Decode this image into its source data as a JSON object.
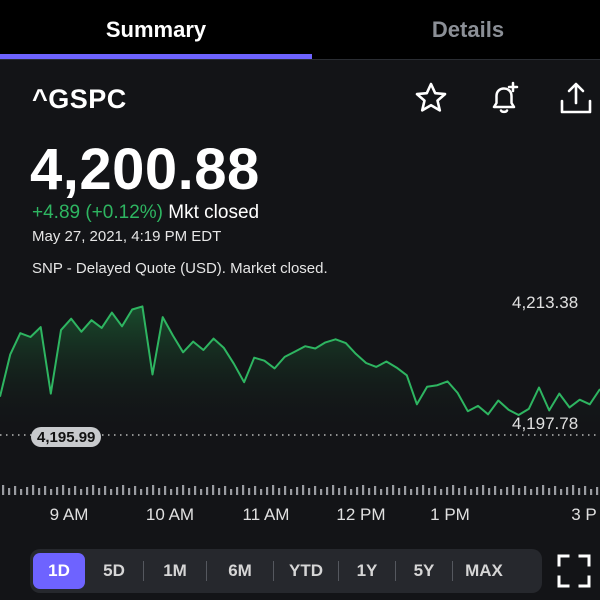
{
  "tabs": [
    {
      "label": "Summary",
      "active": true
    },
    {
      "label": "Details",
      "active": false
    }
  ],
  "quote": {
    "symbol": "^GSPC",
    "price": "4,200.88",
    "change": "+4.89 (+0.12%)",
    "market_status": "Mkt closed",
    "timestamp": "May 27, 2021, 4:19 PM EDT",
    "note": "SNP - Delayed Quote (USD). Market closed."
  },
  "icons": {
    "watchlist": "star-icon",
    "alert": "bell-plus-icon",
    "share": "share-icon",
    "fullscreen": "expand-icon"
  },
  "colors": {
    "accent": "#6e63ff",
    "positive": "#2eb561",
    "background": "#131417"
  },
  "chart_data": {
    "type": "area",
    "high_label": "4,213.38",
    "low_label": "4,197.78",
    "previous_close_label": "4,195.99",
    "x_ticks": [
      "9 AM",
      "10 AM",
      "11 AM",
      "12 PM",
      "1 PM",
      "3 P"
    ],
    "ylim": [
      4195.99,
      4213.38
    ],
    "grid": false,
    "series": [
      {
        "values": [
          4201.0,
          4206.5,
          4209.3,
          4208.8,
          4210.1,
          4201.4,
          4209.7,
          4211.2,
          4209.5,
          4211.0,
          4210.0,
          4212.0,
          4210.2,
          4212.4,
          4212.8,
          4203.9,
          4211.4,
          4209.0,
          4206.8,
          4208.2,
          4207.1,
          4208.6,
          4207.4,
          4205.3,
          4202.9,
          4206.1,
          4205.7,
          4204.7,
          4206.2,
          4206.9,
          4207.6,
          4207.3,
          4208.1,
          4208.5,
          4208.0,
          4206.6,
          4205.4,
          4204.9,
          4205.6,
          4204.8,
          4203.8,
          4200.0,
          4202.3,
          4202.5,
          4203.0,
          4201.5,
          4199.1,
          4199.8,
          4198.7,
          4200.5,
          4199.3,
          4198.6,
          4199.4,
          4202.2,
          4199.2,
          4201.4,
          4199.6,
          4200.6,
          4200.0,
          4202.0
        ]
      }
    ]
  },
  "ranges": {
    "active": "1D",
    "items": [
      "1D",
      "5D",
      "1M",
      "6M",
      "YTD",
      "1Y",
      "5Y",
      "MAX"
    ]
  }
}
